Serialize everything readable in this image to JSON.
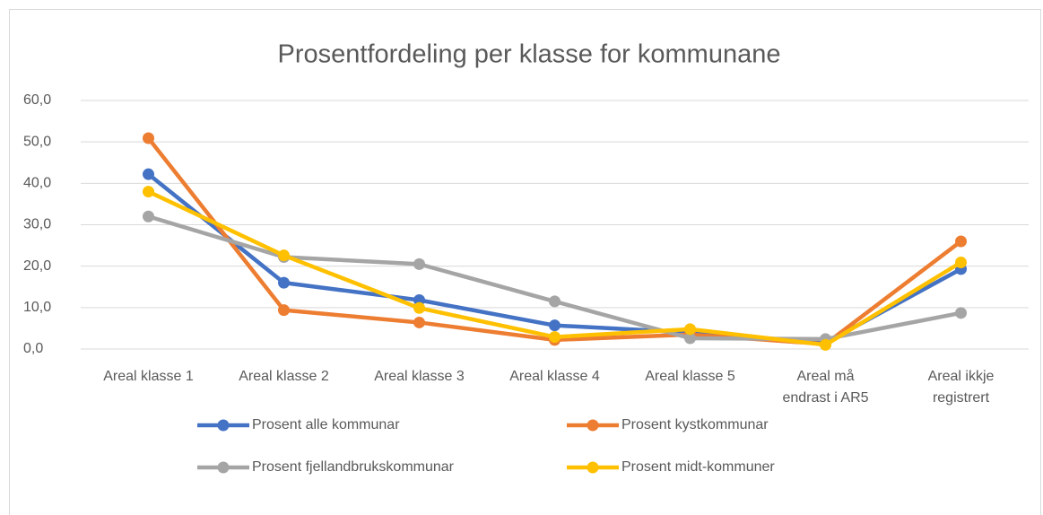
{
  "chart_data": {
    "type": "line",
    "title": "Prosentfordeling per klasse for kommunane",
    "categories": [
      "Areal klasse 1",
      "Areal klasse 2",
      "Areal klasse 3",
      "Areal klasse 4",
      "Areal klasse 5",
      "Areal må endrast i AR5",
      "Areal ikkje registrert"
    ],
    "series": [
      {
        "name": "Prosent alle kommunar",
        "color": "#4472c4",
        "values": [
          42.2,
          16.0,
          11.8,
          5.7,
          4.0,
          1.5,
          19.3
        ]
      },
      {
        "name": "Prosent kystkommunar",
        "color": "#ed7d31",
        "values": [
          50.9,
          9.4,
          6.4,
          2.2,
          3.5,
          1.2,
          26.0
        ]
      },
      {
        "name": "Prosent fjellandbrukskommunar",
        "color": "#a5a5a5",
        "values": [
          32.0,
          22.2,
          20.5,
          11.5,
          2.6,
          2.4,
          8.7
        ]
      },
      {
        "name": "Prosent midt-kommuner",
        "color": "#ffc000",
        "values": [
          38.0,
          22.6,
          9.9,
          2.9,
          4.8,
          1.0,
          20.9
        ]
      }
    ],
    "ylim": [
      0,
      60
    ],
    "yticks": [
      {
        "value": 0,
        "label": "0,0"
      },
      {
        "value": 10,
        "label": "10,0"
      },
      {
        "value": 20,
        "label": "20,0"
      },
      {
        "value": 30,
        "label": "30,0"
      },
      {
        "value": 40,
        "label": "40,0"
      },
      {
        "value": 50,
        "label": "50,0"
      },
      {
        "value": 60,
        "label": "60,0"
      }
    ],
    "grid": true,
    "legend": "bottom"
  }
}
